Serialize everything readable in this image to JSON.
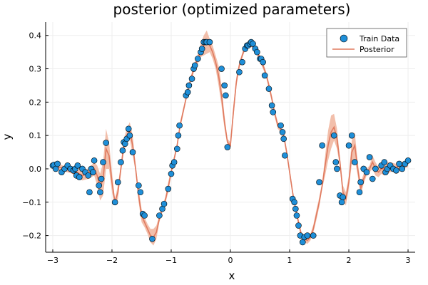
{
  "chart_data": {
    "type": "scatter",
    "title": "posterior (optimized parameters)",
    "xlabel": "x",
    "ylabel": "y",
    "xlim": [
      -3.12,
      3.12
    ],
    "ylim": [
      -0.25,
      0.44
    ],
    "xticks": [
      -3,
      -2,
      -1,
      0,
      1,
      2,
      3
    ],
    "xtick_labels": [
      "−3",
      "−2",
      "−1",
      "0",
      "1",
      "2",
      "3"
    ],
    "yticks": [
      -0.2,
      -0.1,
      0.0,
      0.1,
      0.2,
      0.3,
      0.4
    ],
    "ytick_labels": [
      "−0.2",
      "−0.1",
      "0.0",
      "0.1",
      "0.2",
      "0.3",
      "0.4"
    ],
    "grid": true,
    "legend_position": "top-right",
    "colors": {
      "train": "#1f8fd8",
      "posterior": "#e07a5f",
      "band": "#f0b49c",
      "grid": "#eeeeee"
    },
    "series": [
      {
        "name": "Train Data",
        "kind": "scatter",
        "points": [
          [
            -3.0,
            0.01
          ],
          [
            -2.98,
            0.012
          ],
          [
            -2.95,
            0.0
          ],
          [
            -2.92,
            0.015
          ],
          [
            -2.85,
            -0.01
          ],
          [
            -2.8,
            0.0
          ],
          [
            -2.75,
            0.01
          ],
          [
            -2.7,
            0.0
          ],
          [
            -2.65,
            -0.005
          ],
          [
            -2.62,
            0.0
          ],
          [
            -2.6,
            -0.02
          ],
          [
            -2.58,
            0.01
          ],
          [
            -2.55,
            -0.025
          ],
          [
            -2.5,
            0.0
          ],
          [
            -2.45,
            -0.01
          ],
          [
            -2.4,
            -0.02
          ],
          [
            -2.38,
            -0.07
          ],
          [
            -2.35,
            0.0
          ],
          [
            -2.32,
            -0.01
          ],
          [
            -2.3,
            0.025
          ],
          [
            -2.22,
            -0.05
          ],
          [
            -2.2,
            -0.07
          ],
          [
            -2.18,
            -0.03
          ],
          [
            -2.15,
            0.02
          ],
          [
            -2.1,
            0.078
          ],
          [
            -1.95,
            -0.1
          ],
          [
            -1.9,
            -0.04
          ],
          [
            -1.85,
            0.02
          ],
          [
            -1.82,
            0.055
          ],
          [
            -1.8,
            0.08
          ],
          [
            -1.78,
            0.075
          ],
          [
            -1.75,
            0.09
          ],
          [
            -1.72,
            0.12
          ],
          [
            -1.7,
            0.1
          ],
          [
            -1.65,
            0.05
          ],
          [
            -1.55,
            -0.05
          ],
          [
            -1.52,
            -0.07
          ],
          [
            -1.48,
            -0.135
          ],
          [
            -1.45,
            -0.14
          ],
          [
            -1.32,
            -0.21
          ],
          [
            -1.2,
            -0.14
          ],
          [
            -1.15,
            -0.12
          ],
          [
            -1.12,
            -0.105
          ],
          [
            -1.05,
            -0.06
          ],
          [
            -1.0,
            -0.015
          ],
          [
            -0.98,
            0.01
          ],
          [
            -0.95,
            0.02
          ],
          [
            -0.9,
            0.06
          ],
          [
            -0.88,
            0.1
          ],
          [
            -0.86,
            0.13
          ],
          [
            -0.75,
            0.22
          ],
          [
            -0.72,
            0.23
          ],
          [
            -0.7,
            0.25
          ],
          [
            -0.65,
            0.27
          ],
          [
            -0.62,
            0.3
          ],
          [
            -0.6,
            0.31
          ],
          [
            -0.55,
            0.33
          ],
          [
            -0.5,
            0.35
          ],
          [
            -0.48,
            0.36
          ],
          [
            -0.45,
            0.38
          ],
          [
            -0.42,
            0.38
          ],
          [
            -0.4,
            0.38
          ],
          [
            -0.35,
            0.38
          ],
          [
            -0.15,
            0.3
          ],
          [
            -0.1,
            0.25
          ],
          [
            -0.08,
            0.22
          ],
          [
            -0.05,
            0.065
          ],
          [
            0.15,
            0.29
          ],
          [
            0.2,
            0.32
          ],
          [
            0.25,
            0.36
          ],
          [
            0.28,
            0.37
          ],
          [
            0.3,
            0.37
          ],
          [
            0.33,
            0.375
          ],
          [
            0.35,
            0.38
          ],
          [
            0.38,
            0.375
          ],
          [
            0.42,
            0.36
          ],
          [
            0.45,
            0.35
          ],
          [
            0.5,
            0.33
          ],
          [
            0.52,
            0.33
          ],
          [
            0.55,
            0.32
          ],
          [
            0.58,
            0.28
          ],
          [
            0.65,
            0.24
          ],
          [
            0.7,
            0.19
          ],
          [
            0.72,
            0.17
          ],
          [
            0.85,
            0.13
          ],
          [
            0.88,
            0.11
          ],
          [
            0.9,
            0.09
          ],
          [
            0.92,
            0.04
          ],
          [
            1.05,
            -0.09
          ],
          [
            1.08,
            -0.1
          ],
          [
            1.1,
            -0.12
          ],
          [
            1.12,
            -0.14
          ],
          [
            1.15,
            -0.17
          ],
          [
            1.18,
            -0.2
          ],
          [
            1.22,
            -0.22
          ],
          [
            1.25,
            -0.205
          ],
          [
            1.3,
            -0.2
          ],
          [
            1.4,
            -0.2
          ],
          [
            1.5,
            -0.04
          ],
          [
            1.55,
            0.07
          ],
          [
            1.75,
            0.1
          ],
          [
            1.78,
            0.02
          ],
          [
            1.8,
            0.0
          ],
          [
            1.85,
            -0.08
          ],
          [
            1.88,
            -0.1
          ],
          [
            1.9,
            -0.085
          ],
          [
            2.0,
            0.07
          ],
          [
            2.05,
            0.1
          ],
          [
            2.1,
            0.02
          ],
          [
            2.18,
            -0.07
          ],
          [
            2.2,
            -0.04
          ],
          [
            2.25,
            0.0
          ],
          [
            2.3,
            -0.01
          ],
          [
            2.35,
            0.035
          ],
          [
            2.4,
            -0.03
          ],
          [
            2.45,
            0.0
          ],
          [
            2.55,
            0.01
          ],
          [
            2.6,
            0.02
          ],
          [
            2.62,
            -0.01
          ],
          [
            2.65,
            0.0
          ],
          [
            2.7,
            0.01
          ],
          [
            2.75,
            0.0
          ],
          [
            2.8,
            -0.005
          ],
          [
            2.85,
            0.015
          ],
          [
            2.9,
            0.0
          ],
          [
            2.95,
            0.015
          ],
          [
            3.0,
            0.025
          ]
        ]
      },
      {
        "name": "Posterior",
        "kind": "line",
        "x": [
          -3.0,
          -2.9,
          -2.8,
          -2.7,
          -2.6,
          -2.5,
          -2.4,
          -2.3,
          -2.25,
          -2.2,
          -2.15,
          -2.1,
          -2.05,
          -2.0,
          -1.95,
          -1.9,
          -1.85,
          -1.8,
          -1.75,
          -1.7,
          -1.65,
          -1.6,
          -1.55,
          -1.5,
          -1.45,
          -1.4,
          -1.35,
          -1.3,
          -1.25,
          -1.2,
          -1.15,
          -1.1,
          -1.05,
          -1.0,
          -0.95,
          -0.9,
          -0.85,
          -0.8,
          -0.75,
          -0.7,
          -0.65,
          -0.6,
          -0.55,
          -0.5,
          -0.45,
          -0.4,
          -0.35,
          -0.3,
          -0.25,
          -0.2,
          -0.15,
          -0.1,
          -0.05,
          0.0,
          0.05,
          0.1,
          0.15,
          0.2,
          0.25,
          0.3,
          0.35,
          0.4,
          0.45,
          0.5,
          0.55,
          0.6,
          0.65,
          0.7,
          0.75,
          0.8,
          0.85,
          0.9,
          0.95,
          1.0,
          1.05,
          1.1,
          1.15,
          1.2,
          1.25,
          1.3,
          1.35,
          1.4,
          1.45,
          1.5,
          1.55,
          1.6,
          1.65,
          1.7,
          1.75,
          1.8,
          1.85,
          1.9,
          1.95,
          2.0,
          2.05,
          2.1,
          2.15,
          2.2,
          2.25,
          2.3,
          2.35,
          2.4,
          2.45,
          2.5,
          2.55,
          2.6,
          2.7,
          2.8,
          2.9,
          3.0
        ],
        "mean": [
          0.01,
          0.005,
          0.0,
          -0.005,
          -0.01,
          -0.02,
          -0.015,
          0.0,
          -0.02,
          -0.055,
          -0.03,
          0.06,
          0.04,
          -0.04,
          -0.1,
          -0.07,
          0.0,
          0.07,
          0.1,
          0.115,
          0.07,
          0.0,
          -0.08,
          -0.14,
          -0.16,
          -0.18,
          -0.2,
          -0.205,
          -0.19,
          -0.15,
          -0.12,
          -0.095,
          -0.055,
          -0.01,
          0.03,
          0.07,
          0.13,
          0.17,
          0.21,
          0.25,
          0.28,
          0.31,
          0.33,
          0.355,
          0.37,
          0.38,
          0.37,
          0.35,
          0.32,
          0.28,
          0.22,
          0.14,
          0.08,
          0.07,
          0.17,
          0.26,
          0.31,
          0.34,
          0.365,
          0.37,
          0.375,
          0.37,
          0.35,
          0.33,
          0.31,
          0.285,
          0.25,
          0.21,
          0.165,
          0.13,
          0.12,
          0.1,
          0.05,
          -0.01,
          -0.07,
          -0.12,
          -0.16,
          -0.2,
          -0.21,
          -0.215,
          -0.205,
          -0.18,
          -0.14,
          -0.1,
          -0.05,
          0.01,
          0.07,
          0.11,
          0.125,
          0.09,
          0.02,
          -0.07,
          -0.09,
          -0.04,
          0.05,
          0.07,
          0.0,
          -0.06,
          -0.03,
          -0.01,
          0.0,
          0.02,
          0.0,
          -0.01,
          0.0,
          0.0,
          0.005,
          0.005,
          0.01,
          0.015
        ],
        "band": [
          0.01,
          0.01,
          0.008,
          0.008,
          0.01,
          0.015,
          0.015,
          0.02,
          0.03,
          0.04,
          0.05,
          0.06,
          0.04,
          0.03,
          0.01,
          0.02,
          0.015,
          0.02,
          0.02,
          0.025,
          0.03,
          0.01,
          0.02,
          0.02,
          0.015,
          0.015,
          0.02,
          0.025,
          0.02,
          0.01,
          0.01,
          0.01,
          0.015,
          0.01,
          0.008,
          0.01,
          0.01,
          0.01,
          0.008,
          0.008,
          0.01,
          0.01,
          0.015,
          0.02,
          0.03,
          0.035,
          0.02,
          0.02,
          0.02,
          0.03,
          0.03,
          0.02,
          0.01,
          0.01,
          0.02,
          0.015,
          0.01,
          0.008,
          0.008,
          0.008,
          0.01,
          0.008,
          0.01,
          0.01,
          0.01,
          0.008,
          0.01,
          0.01,
          0.01,
          0.01,
          0.01,
          0.01,
          0.01,
          0.01,
          0.01,
          0.01,
          0.01,
          0.01,
          0.01,
          0.01,
          0.01,
          0.012,
          0.015,
          0.015,
          0.01,
          0.03,
          0.045,
          0.05,
          0.04,
          0.03,
          0.015,
          0.02,
          0.02,
          0.02,
          0.035,
          0.04,
          0.02,
          0.02,
          0.015,
          0.01,
          0.01,
          0.02,
          0.02,
          0.015,
          0.015,
          0.02,
          0.015,
          0.01,
          0.01,
          0.01
        ]
      }
    ]
  }
}
